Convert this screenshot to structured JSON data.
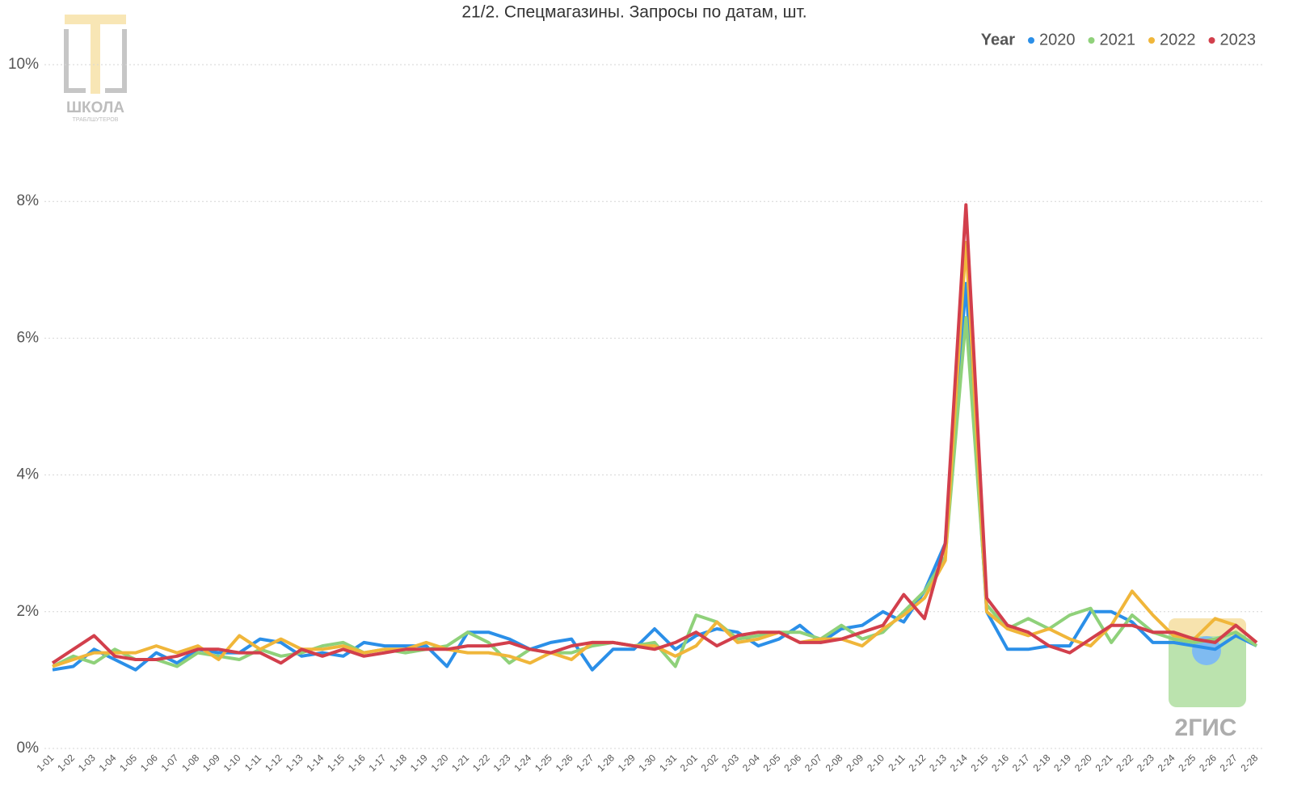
{
  "chart_data": {
    "type": "line",
    "title": "21/2. Спецмагазины. Запросы по датам, шт.",
    "legend_title": "Year",
    "legend_position": "top-right",
    "grid": true,
    "watermarks": [
      "ШКОЛА",
      "ТРАБЛШУТЕРОВ",
      "2ГИС"
    ],
    "categories": [
      "1-01",
      "1-02",
      "1-03",
      "1-04",
      "1-05",
      "1-06",
      "1-07",
      "1-08",
      "1-09",
      "1-10",
      "1-11",
      "1-12",
      "1-13",
      "1-14",
      "1-15",
      "1-16",
      "1-17",
      "1-18",
      "1-19",
      "1-20",
      "1-21",
      "1-22",
      "1-23",
      "1-24",
      "1-25",
      "1-26",
      "1-27",
      "1-28",
      "1-29",
      "1-30",
      "1-31",
      "2-01",
      "2-02",
      "2-03",
      "2-04",
      "2-05",
      "2-06",
      "2-07",
      "2-08",
      "2-09",
      "2-10",
      "2-11",
      "2-12",
      "2-13",
      "2-14",
      "2-15",
      "2-16",
      "2-17",
      "2-18",
      "2-19",
      "2-20",
      "2-21",
      "2-22",
      "2-23",
      "2-24",
      "2-25",
      "2-26",
      "2-27",
      "2-28"
    ],
    "ylim": [
      0,
      10
    ],
    "yticks": [
      {
        "value": 0,
        "label": "0%"
      },
      {
        "value": 2,
        "label": "2%"
      },
      {
        "value": 4,
        "label": "4%"
      },
      {
        "value": 6,
        "label": "6%"
      },
      {
        "value": 8,
        "label": "8%"
      },
      {
        "value": 10,
        "label": "10%"
      }
    ],
    "series": [
      {
        "name": "2020",
        "color": "#2b8fe8",
        "values": [
          1.15,
          1.2,
          1.45,
          1.3,
          1.15,
          1.4,
          1.25,
          1.45,
          1.4,
          1.4,
          1.6,
          1.55,
          1.35,
          1.4,
          1.35,
          1.55,
          1.5,
          1.5,
          1.5,
          1.2,
          1.7,
          1.7,
          1.6,
          1.45,
          1.55,
          1.6,
          1.15,
          1.45,
          1.45,
          1.75,
          1.45,
          1.65,
          1.75,
          1.7,
          1.5,
          1.6,
          1.8,
          1.55,
          1.75,
          1.8,
          2.0,
          1.85,
          2.3,
          3.0,
          6.8,
          2.0,
          1.45,
          1.45,
          1.5,
          1.5,
          2.0,
          2.0,
          1.85,
          1.55,
          1.55,
          1.5,
          1.45,
          1.65,
          1.5
        ]
      },
      {
        "name": "2021",
        "color": "#8fd17a",
        "values": [
          1.2,
          1.35,
          1.25,
          1.45,
          1.3,
          1.3,
          1.2,
          1.4,
          1.35,
          1.3,
          1.45,
          1.35,
          1.4,
          1.5,
          1.55,
          1.4,
          1.45,
          1.4,
          1.45,
          1.5,
          1.7,
          1.55,
          1.25,
          1.45,
          1.4,
          1.4,
          1.5,
          1.55,
          1.5,
          1.55,
          1.2,
          1.95,
          1.85,
          1.6,
          1.65,
          1.7,
          1.7,
          1.6,
          1.8,
          1.6,
          1.7,
          2.0,
          2.3,
          2.8,
          6.3,
          2.1,
          1.75,
          1.9,
          1.75,
          1.95,
          2.05,
          1.55,
          1.95,
          1.7,
          1.6,
          1.55,
          1.6,
          1.7,
          1.5
        ]
      },
      {
        "name": "2022",
        "color": "#f0b63a",
        "values": [
          1.2,
          1.3,
          1.4,
          1.4,
          1.4,
          1.5,
          1.4,
          1.5,
          1.3,
          1.65,
          1.45,
          1.6,
          1.45,
          1.45,
          1.5,
          1.4,
          1.45,
          1.45,
          1.55,
          1.45,
          1.4,
          1.4,
          1.35,
          1.25,
          1.4,
          1.3,
          1.55,
          1.55,
          1.5,
          1.5,
          1.35,
          1.5,
          1.85,
          1.55,
          1.6,
          1.7,
          1.55,
          1.6,
          1.6,
          1.5,
          1.75,
          1.95,
          2.2,
          2.75,
          7.4,
          2.0,
          1.75,
          1.65,
          1.75,
          1.6,
          1.5,
          1.8,
          2.3,
          1.95,
          1.65,
          1.6,
          1.9,
          1.8,
          1.55
        ]
      },
      {
        "name": "2023",
        "color": "#d23f4c",
        "values": [
          1.25,
          1.45,
          1.65,
          1.35,
          1.3,
          1.3,
          1.35,
          1.45,
          1.45,
          1.4,
          1.4,
          1.25,
          1.45,
          1.35,
          1.45,
          1.35,
          1.4,
          1.45,
          1.45,
          1.45,
          1.5,
          1.5,
          1.55,
          1.45,
          1.4,
          1.5,
          1.55,
          1.55,
          1.5,
          1.45,
          1.55,
          1.7,
          1.5,
          1.65,
          1.7,
          1.7,
          1.55,
          1.55,
          1.6,
          1.7,
          1.8,
          2.25,
          1.9,
          3.0,
          7.95,
          2.2,
          1.8,
          1.7,
          1.5,
          1.4,
          1.6,
          1.8,
          1.8,
          1.7,
          1.7,
          1.6,
          1.55,
          1.8,
          1.55
        ]
      }
    ]
  }
}
